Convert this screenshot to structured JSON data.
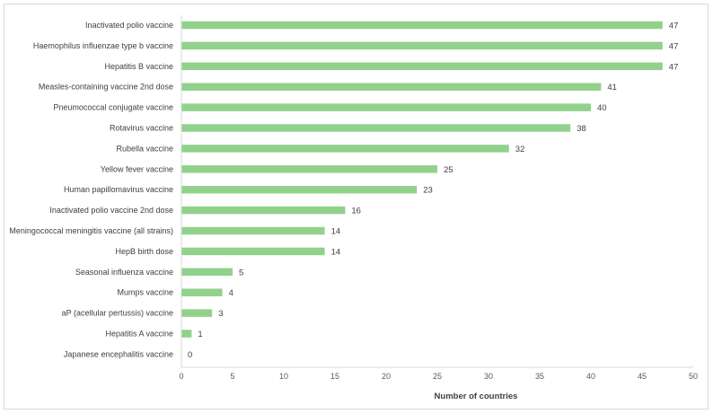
{
  "chart_data": {
    "type": "bar",
    "orientation": "horizontal",
    "categories": [
      "Inactivated polio vaccine",
      "Haemophilus influenzae type b vaccine",
      "Hepatitis B vaccine",
      "Measles-containing vaccine 2nd dose",
      "Pneumococcal conjugate vaccine",
      "Rotavirus vaccine",
      "Rubella vaccine",
      "Yellow fever vaccine",
      "Human papillomavirus vaccine",
      "Inactivated polio vaccine 2nd dose",
      "Meningococcal meningitis vaccine (all strains)",
      "HepB birth dose",
      "Seasonal influenza vaccine",
      "Mumps vaccine",
      "aP (acellular pertussis) vaccine",
      "Hepatitis A vaccine",
      "Japanese encephalitis vaccine"
    ],
    "values": [
      47,
      47,
      47,
      41,
      40,
      38,
      32,
      25,
      23,
      16,
      14,
      14,
      5,
      4,
      3,
      1,
      0
    ],
    "xlabel": "Number of countries",
    "ylabel": "",
    "xlim": [
      0,
      50
    ],
    "xticks": [
      0,
      5,
      10,
      15,
      20,
      25,
      30,
      35,
      40,
      45,
      50
    ],
    "grid": false,
    "data_labels": true,
    "bar_color": "#92d18b"
  }
}
